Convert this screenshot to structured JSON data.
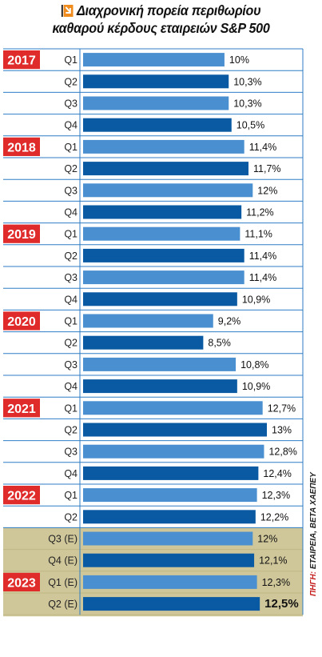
{
  "header": {
    "title_line_1": "Διαχρονική πορεία περιθωρίου",
    "title_line_2": "καθαρού κέρδους εταιρειών S&P 500",
    "icon": "arrow-down-right-icon"
  },
  "source": {
    "label": "ΠΗΓΗ:",
    "text": " ΕΤΑΙΡΕΙΑ, BETA ΧΑΕΠΕΥ"
  },
  "colors": {
    "light_bar": "#4a8fd0",
    "dark_bar": "#0a5aa3",
    "year_badge": "#e02b2b",
    "grid_line": "#2f7ec5",
    "estimate_band": "#cfc79a",
    "estimate_band_dark": "#bfb783"
  },
  "chart_data": {
    "type": "bar",
    "orientation": "horizontal",
    "title": "Διαχρονική πορεία περιθωρίου καθαρού κέρδους εταιρειών S&P 500",
    "value_unit": "%",
    "xlim": [
      0,
      13
    ],
    "rows": [
      {
        "year": "2017",
        "quarter": "Q1",
        "value": 10.0,
        "label": "10%",
        "estimate": false
      },
      {
        "year": "",
        "quarter": "Q2",
        "value": 10.3,
        "label": "10,3%",
        "estimate": false
      },
      {
        "year": "",
        "quarter": "Q3",
        "value": 10.3,
        "label": "10,3%",
        "estimate": false
      },
      {
        "year": "",
        "quarter": "Q4",
        "value": 10.5,
        "label": "10,5%",
        "estimate": false
      },
      {
        "year": "2018",
        "quarter": "Q1",
        "value": 11.4,
        "label": "11,4%",
        "estimate": false
      },
      {
        "year": "",
        "quarter": "Q2",
        "value": 11.7,
        "label": "11,7%",
        "estimate": false
      },
      {
        "year": "",
        "quarter": "Q3",
        "value": 12.0,
        "label": "12%",
        "estimate": false
      },
      {
        "year": "",
        "quarter": "Q4",
        "value": 11.2,
        "label": "11,2%",
        "estimate": false
      },
      {
        "year": "2019",
        "quarter": "Q1",
        "value": 11.1,
        "label": "11,1%",
        "estimate": false
      },
      {
        "year": "",
        "quarter": "Q2",
        "value": 11.4,
        "label": "11,4%",
        "estimate": false
      },
      {
        "year": "",
        "quarter": "Q3",
        "value": 11.4,
        "label": "11,4%",
        "estimate": false
      },
      {
        "year": "",
        "quarter": "Q4",
        "value": 10.9,
        "label": "10,9%",
        "estimate": false
      },
      {
        "year": "2020",
        "quarter": "Q1",
        "value": 9.2,
        "label": "9,2%",
        "estimate": false
      },
      {
        "year": "",
        "quarter": "Q2",
        "value": 8.5,
        "label": "8,5%",
        "estimate": false
      },
      {
        "year": "",
        "quarter": "Q3",
        "value": 10.8,
        "label": "10,8%",
        "estimate": false
      },
      {
        "year": "",
        "quarter": "Q4",
        "value": 10.9,
        "label": "10,9%",
        "estimate": false
      },
      {
        "year": "2021",
        "quarter": "Q1",
        "value": 12.7,
        "label": "12,7%",
        "estimate": false
      },
      {
        "year": "",
        "quarter": "Q2",
        "value": 13.0,
        "label": "13%",
        "estimate": false
      },
      {
        "year": "",
        "quarter": "Q3",
        "value": 12.8,
        "label": "12,8%",
        "estimate": false
      },
      {
        "year": "",
        "quarter": "Q4",
        "value": 12.4,
        "label": "12,4%",
        "estimate": false
      },
      {
        "year": "2022",
        "quarter": "Q1",
        "value": 12.3,
        "label": "12,3%",
        "estimate": false
      },
      {
        "year": "",
        "quarter": "Q2",
        "value": 12.2,
        "label": "12,2%",
        "estimate": false
      },
      {
        "year": "",
        "quarter": "Q3 (E)",
        "value": 12.0,
        "label": "12%",
        "estimate": true
      },
      {
        "year": "",
        "quarter": "Q4 (E)",
        "value": 12.1,
        "label": "12,1%",
        "estimate": true
      },
      {
        "year": "2023",
        "quarter": "Q1 (E)",
        "value": 12.3,
        "label": "12,3%",
        "estimate": true
      },
      {
        "year": "",
        "quarter": "Q2 (E)",
        "value": 12.5,
        "label": "12,5%",
        "estimate": true,
        "highlight": true
      }
    ]
  }
}
